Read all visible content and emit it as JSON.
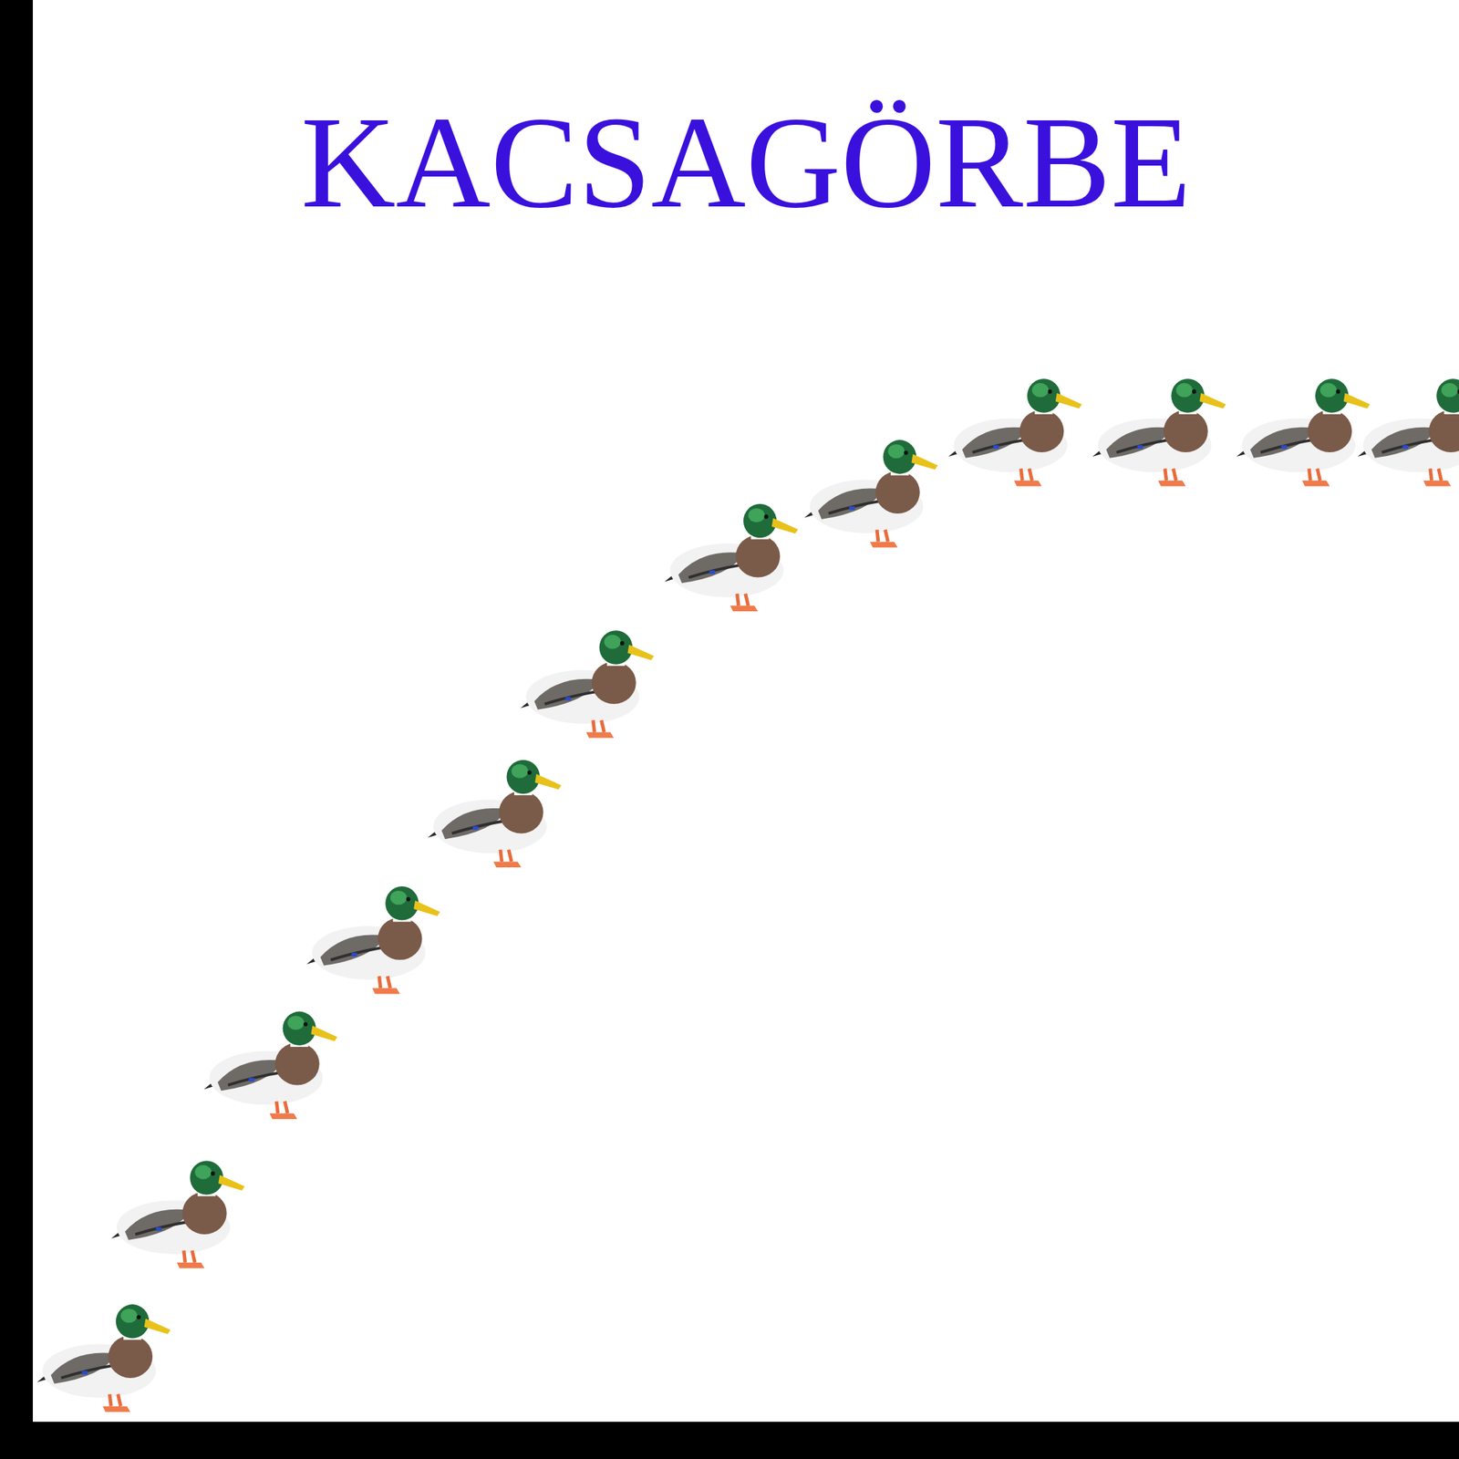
{
  "chart_data": {
    "type": "scatter",
    "title": "KACSAGÖRBE",
    "x": [
      4.9,
      10.1,
      16.6,
      23.8,
      32.3,
      38.8,
      48.9,
      58.7,
      68.8,
      78.9,
      89.0,
      97.5
    ],
    "values": [
      4.8,
      14.9,
      25.4,
      34.2,
      43.1,
      52.2,
      61.1,
      65.6,
      69.9,
      69.9,
      69.9,
      69.9
    ],
    "xlim": [
      0,
      100
    ],
    "ylim": [
      0,
      100
    ],
    "tick_labels": false,
    "grid": false,
    "marker": "duck"
  }
}
